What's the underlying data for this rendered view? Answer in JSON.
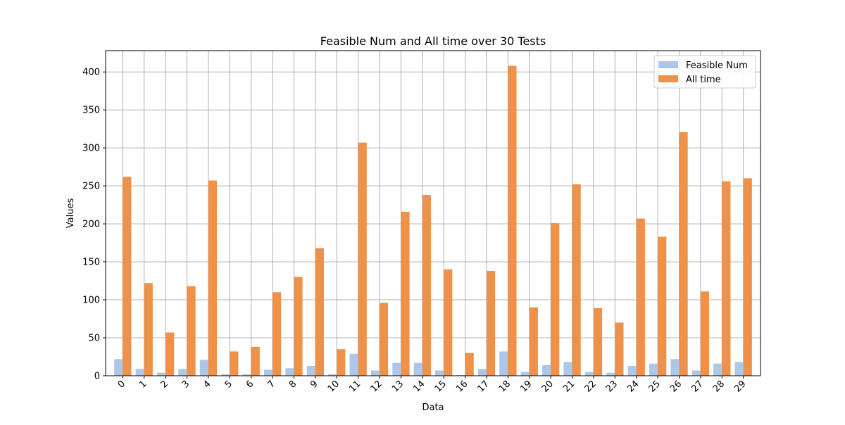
{
  "chart_data": {
    "type": "bar",
    "title": "Feasible Num and All time over 30 Tests",
    "xlabel": "Data",
    "ylabel": "Values",
    "categories": [
      "0",
      "1",
      "2",
      "3",
      "4",
      "5",
      "6",
      "7",
      "8",
      "9",
      "10",
      "11",
      "12",
      "13",
      "14",
      "15",
      "16",
      "17",
      "18",
      "19",
      "20",
      "21",
      "22",
      "23",
      "24",
      "25",
      "26",
      "27",
      "28",
      "29"
    ],
    "series": [
      {
        "name": "Feasible Num",
        "color": "#aec7e8",
        "values": [
          22,
          9,
          4,
          9,
          21,
          2,
          2,
          8,
          10,
          13,
          2,
          29,
          7,
          17,
          17,
          7,
          1,
          9,
          32,
          5,
          14,
          18,
          5,
          4,
          13,
          16,
          22,
          7,
          16,
          18
        ]
      },
      {
        "name": "All time",
        "color": "#ef9148",
        "values": [
          262,
          122,
          57,
          118,
          257,
          32,
          38,
          110,
          130,
          168,
          35,
          307,
          96,
          216,
          238,
          140,
          30,
          138,
          408,
          90,
          201,
          252,
          89,
          70,
          207,
          183,
          321,
          111,
          256,
          260
        ]
      }
    ],
    "ylim": [
      0,
      428
    ],
    "yticks": [
      0,
      50,
      100,
      150,
      200,
      250,
      300,
      350,
      400
    ],
    "grid": true,
    "legend_position": "top-right"
  }
}
